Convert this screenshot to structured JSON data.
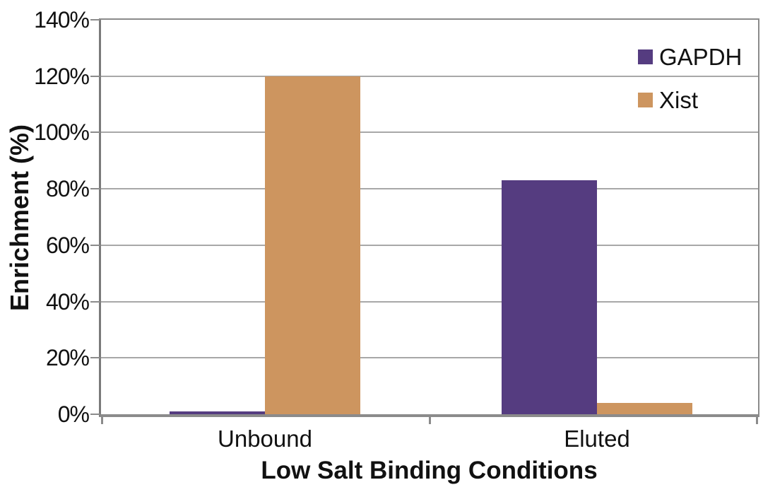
{
  "chart_data": {
    "type": "bar",
    "title": "",
    "categories": [
      "Unbound",
      "Eluted"
    ],
    "series": [
      {
        "name": "GAPDH",
        "color": "#553C80",
        "values": [
          1,
          83
        ]
      },
      {
        "name": "Xist",
        "color": "#CD955F",
        "values": [
          120,
          4
        ]
      }
    ],
    "xlabel": "Low Salt Binding Conditions",
    "ylabel": "Enrichment (%)",
    "ylim": [
      0,
      140
    ],
    "ytick_step": 20,
    "ytick_suffix": "%",
    "grid": "horizontal",
    "legend_position": "top-right",
    "colors": {
      "gridline": "#A8A8A8",
      "axis": "#8B8B8B",
      "text": "#111111",
      "background": "#FFFFFF"
    }
  }
}
